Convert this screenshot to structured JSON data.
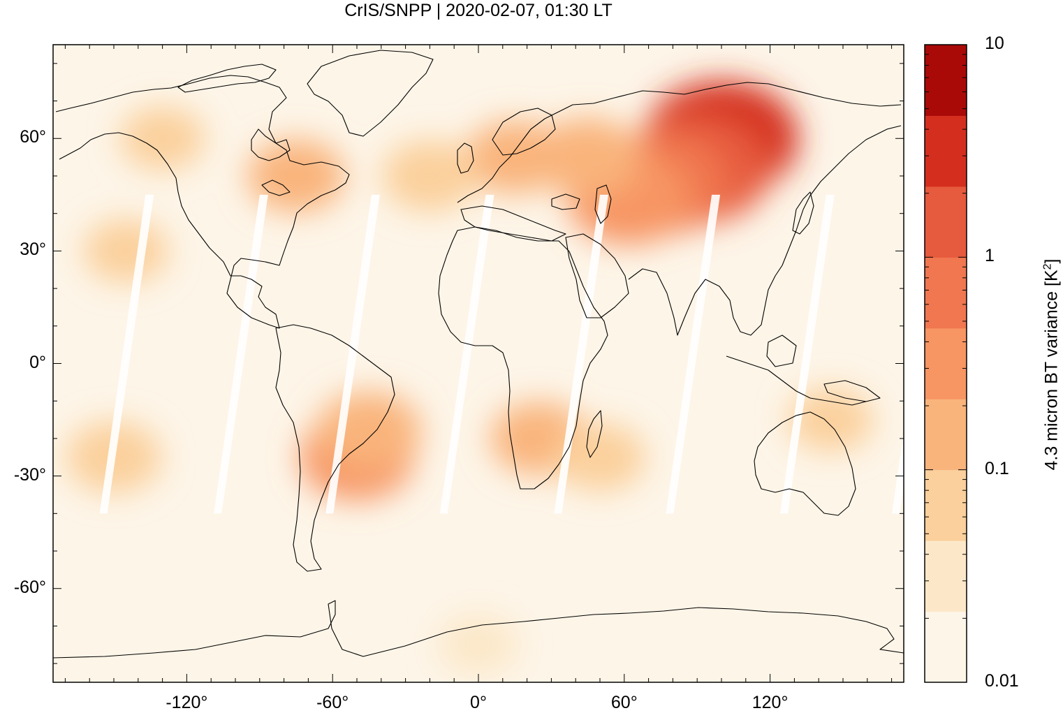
{
  "title": "CrIS/SNPP | 2020-02-07, 01:30 LT",
  "colorbar": {
    "label_prefix": "4.3 micron BT variance [K",
    "label_sup": "2",
    "label_suffix": "]",
    "ticks": [
      "10",
      "1",
      "0.1",
      "0.01"
    ],
    "scale": "log",
    "range": [
      0.01,
      10
    ],
    "colors": [
      "#fdf5e8",
      "#fce8c9",
      "#fbd09c",
      "#f9b47c",
      "#f79563",
      "#f07750",
      "#e65a3d",
      "#d42e1f",
      "#a90a08"
    ]
  },
  "chart_data": {
    "type": "heatmap",
    "title": "CrIS/SNPP | 2020-02-07, 01:30 LT",
    "xlabel": "",
    "ylabel": "",
    "x_ticks": [
      "-120°",
      "-60°",
      "0°",
      "60°",
      "120°"
    ],
    "y_ticks": [
      "60°",
      "30°",
      "0°",
      "-30°",
      "-60°"
    ],
    "xlim": [
      -175,
      175
    ],
    "ylim": [
      -85,
      85
    ],
    "grid": false,
    "colorbar_label": "4.3 micron BT variance [K²]",
    "colorbar_scale": "log",
    "colorbar_range": [
      0.01,
      10
    ],
    "background_value": 0.012,
    "regions": [
      {
        "lon": 100,
        "lat": 60,
        "value": 3.0
      },
      {
        "lon": 90,
        "lat": 52,
        "value": 1.5
      },
      {
        "lon": 75,
        "lat": 48,
        "value": 0.8
      },
      {
        "lon": 62,
        "lat": 44,
        "value": 0.4
      },
      {
        "lon": 45,
        "lat": 55,
        "value": 0.15
      },
      {
        "lon": 15,
        "lat": 55,
        "value": 0.1
      },
      {
        "lon": -20,
        "lat": 50,
        "value": 0.09
      },
      {
        "lon": -75,
        "lat": 50,
        "value": 0.1
      },
      {
        "lon": -130,
        "lat": 60,
        "value": 0.05
      },
      {
        "lon": -50,
        "lat": -25,
        "value": 0.25
      },
      {
        "lon": -45,
        "lat": -18,
        "value": 0.15
      },
      {
        "lon": 25,
        "lat": -20,
        "value": 0.1
      },
      {
        "lon": 50,
        "lat": -25,
        "value": 0.07
      },
      {
        "lon": -150,
        "lat": -25,
        "value": 0.09
      },
      {
        "lon": -145,
        "lat": 30,
        "value": 0.05
      },
      {
        "lon": 145,
        "lat": -15,
        "value": 0.05
      },
      {
        "lon": 0,
        "lat": -75,
        "value": 0.04
      }
    ]
  }
}
